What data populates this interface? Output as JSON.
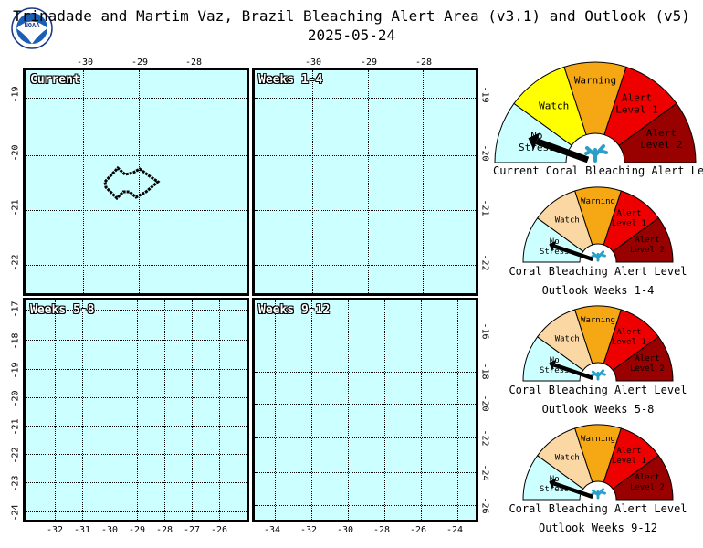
{
  "header": {
    "title": "Trinadade and Martim Vaz, Brazil Bleaching Alert Area (v3.1) and Outlook (v5)",
    "date": "2025-05-24",
    "logo_text": "NOAA"
  },
  "panels": {
    "current": {
      "label": "Current"
    },
    "weeks_1_4": {
      "label": "Weeks 1-4"
    },
    "weeks_5_8": {
      "label": "Weeks 5-8"
    },
    "weeks_9_12": {
      "label": "Weeks 9-12"
    }
  },
  "axes": {
    "top_lon_ticks_left": [
      "-30",
      "-29",
      "-28"
    ],
    "top_lon_ticks_right": [
      "-30",
      "-29",
      "-28"
    ],
    "top_lat_ticks": [
      "-19",
      "-20",
      "-21",
      "-22"
    ],
    "bottom_left_lat_ticks": [
      "-17",
      "-18",
      "-19",
      "-20",
      "-21",
      "-22",
      "-23",
      "-24"
    ],
    "bottom_left_lon_ticks": [
      "-32",
      "-31",
      "-30",
      "-29",
      "-28",
      "-27",
      "-26"
    ],
    "bottom_right_lat_ticks": [
      "-16",
      "-18",
      "-20",
      "-22",
      "-24",
      "-26"
    ],
    "bottom_right_lon_ticks": [
      "-34",
      "-32",
      "-30",
      "-28",
      "-26",
      "-24"
    ]
  },
  "gauge_labels": {
    "no_stress_1": "No",
    "no_stress_2": "Stress",
    "watch": "Watch",
    "warning": "Warning",
    "alert1_1": "Alert",
    "alert1_2": "Level 1",
    "alert2_1": "Alert",
    "alert2_2": "Level 2"
  },
  "gauges": [
    {
      "caption1": "Current Coral Bleaching Alert Level",
      "caption2": "",
      "level": "No Stress",
      "watch_color": "#ffff00"
    },
    {
      "caption1": "Coral Bleaching Alert Level",
      "caption2": "Outlook Weeks 1-4",
      "level": "No Stress",
      "watch_color": "#fbd7a4"
    },
    {
      "caption1": "Coral Bleaching Alert Level",
      "caption2": "Outlook Weeks 5-8",
      "level": "No Stress",
      "watch_color": "#fbd7a4"
    },
    {
      "caption1": "Coral Bleaching Alert Level",
      "caption2": "Outlook Weeks 9-12",
      "level": "No Stress",
      "watch_color": "#fbd7a4"
    }
  ],
  "colors": {
    "ocean": "#ccffff",
    "no_stress": "#ccffff",
    "warning": "#f5a714",
    "alert1": "#ee0000",
    "alert2": "#990000",
    "coral": "#2aa0c8"
  }
}
